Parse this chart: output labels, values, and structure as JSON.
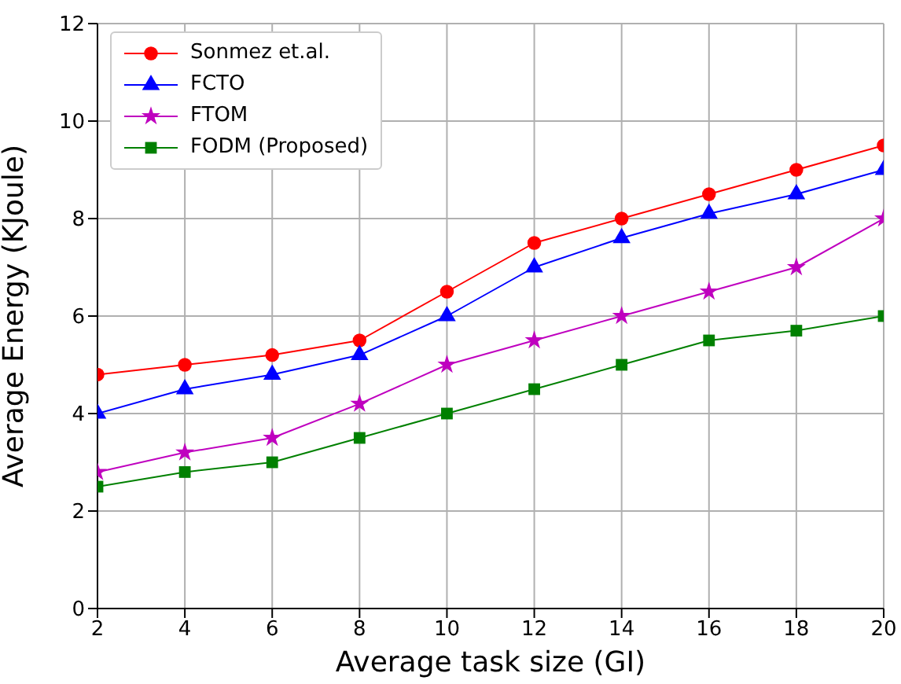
{
  "chart_data": {
    "type": "line",
    "xlabel": "Average task size (GI)",
    "ylabel": "Average Energy (KJoule)",
    "x": [
      2,
      4,
      6,
      8,
      10,
      12,
      14,
      16,
      18,
      20
    ],
    "xlim": [
      2,
      20
    ],
    "xticks": [
      2,
      4,
      6,
      8,
      10,
      12,
      14,
      16,
      18,
      20
    ],
    "ylim": [
      0,
      12
    ],
    "yticks": [
      0,
      2,
      4,
      6,
      8,
      10,
      12
    ],
    "grid": true,
    "legend": "top left",
    "series": [
      {
        "name": "Sonmez et.al.",
        "color": "#ff0000",
        "marker": "circle",
        "values": [
          4.8,
          5.0,
          5.2,
          5.5,
          6.5,
          7.5,
          8.0,
          8.5,
          9.0,
          9.5
        ]
      },
      {
        "name": "FCTO",
        "color": "#0000ff",
        "marker": "triangle",
        "values": [
          4.0,
          4.5,
          4.8,
          5.2,
          6.0,
          7.0,
          7.6,
          8.1,
          8.5,
          9.0
        ]
      },
      {
        "name": "FTOM",
        "color": "#bf00bf",
        "marker": "star",
        "values": [
          2.8,
          3.2,
          3.5,
          4.2,
          5.0,
          5.5,
          6.0,
          6.5,
          7.0,
          8.0
        ]
      },
      {
        "name": "FODM (Proposed)",
        "color": "#008000",
        "marker": "square",
        "values": [
          2.5,
          2.8,
          3.0,
          3.5,
          4.0,
          4.5,
          5.0,
          5.5,
          5.7,
          6.0
        ]
      }
    ]
  }
}
